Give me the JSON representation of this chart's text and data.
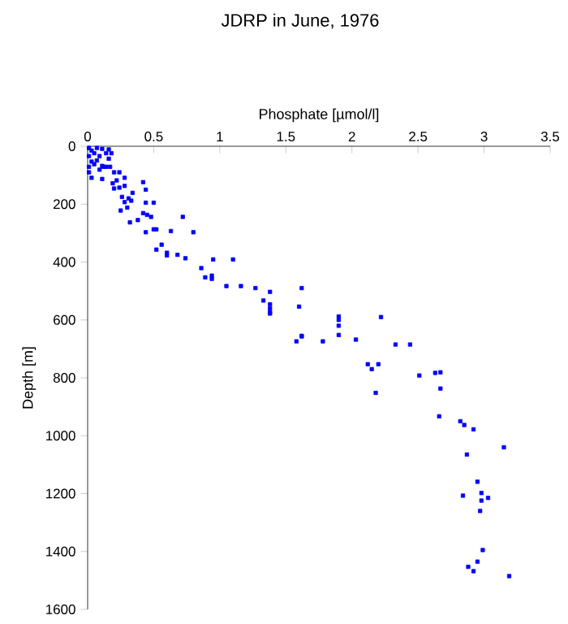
{
  "chart_data": {
    "type": "scatter",
    "title": "JDRP in June, 1976",
    "xlabel": "Phosphate [µmol/l]",
    "ylabel": "Depth [m]",
    "xlim": [
      0,
      3.5
    ],
    "ylim": [
      1600,
      0
    ],
    "xticks": [
      0,
      0.5,
      1,
      1.5,
      2,
      2.5,
      3,
      3.5
    ],
    "yticks": [
      0,
      200,
      400,
      600,
      800,
      1000,
      1200,
      1400,
      1600
    ],
    "marker": "square",
    "series": [
      {
        "color": "#0000ff",
        "x": [
          0.01,
          0.03,
          0.07,
          0.11,
          0.16,
          0.01,
          0.05,
          0.09,
          0.14,
          0.03,
          0.07,
          0.01,
          0.05,
          0.11,
          0.16,
          0.01,
          0.03,
          0.11,
          0.09,
          0.14,
          0.18,
          0.12,
          0.17,
          0.2,
          0.24,
          0.19,
          0.22,
          0.2,
          0.28,
          0.42,
          0.44,
          0.28,
          0.24,
          0.26,
          0.31,
          0.34,
          0.33,
          0.44,
          0.5,
          0.25,
          0.3,
          0.28,
          0.32,
          0.38,
          0.42,
          0.45,
          0.48,
          0.44,
          0.5,
          0.52,
          0.63,
          0.72,
          0.8,
          0.52,
          0.56,
          0.6,
          0.6,
          0.68,
          0.74,
          0.95,
          1.1,
          0.86,
          0.89,
          0.94,
          0.94,
          1.05,
          1.16,
          1.27,
          1.38,
          1.62,
          1.33,
          1.38,
          1.38,
          1.38,
          1.38,
          1.6,
          1.62,
          1.58,
          1.78,
          1.9,
          1.9,
          2.22,
          1.9,
          1.9,
          1.62,
          2.03,
          2.33,
          2.44,
          2.12,
          2.2,
          2.15,
          2.18,
          2.51,
          2.63,
          2.67,
          2.67,
          2.66,
          2.82,
          2.85,
          2.92,
          3.15,
          2.87,
          2.95,
          2.98,
          2.84,
          2.98,
          3.03,
          2.97,
          2.99,
          2.95,
          2.88,
          2.92,
          3.19
        ],
        "values": [
          6,
          15,
          6,
          9,
          11,
          34,
          24,
          34,
          24,
          53,
          49,
          71,
          62,
          68,
          43,
          90,
          109,
          113,
          81,
          71,
          24,
          71,
          71,
          90,
          90,
          128,
          118,
          146,
          109,
          124,
          150,
          137,
          143,
          175,
          180,
          161,
          188,
          195,
          195,
          222,
          212,
          193,
          263,
          255,
          231,
          237,
          244,
          297,
          287,
          287,
          293,
          244,
          297,
          357,
          340,
          368,
          377,
          375,
          387,
          391,
          391,
          421,
          453,
          447,
          458,
          483,
          483,
          490,
          503,
          490,
          533,
          546,
          560,
          573,
          578,
          554,
          655,
          674,
          674,
          588,
          600,
          590,
          620,
          652,
          657,
          668,
          685,
          685,
          753,
          753,
          770,
          852,
          792,
          783,
          781,
          837,
          933,
          950,
          963,
          978,
          1040,
          1065,
          1159,
          1198,
          1207,
          1224,
          1215,
          1260,
          1395,
          1435,
          1453,
          1468,
          1485
        ]
      }
    ]
  }
}
